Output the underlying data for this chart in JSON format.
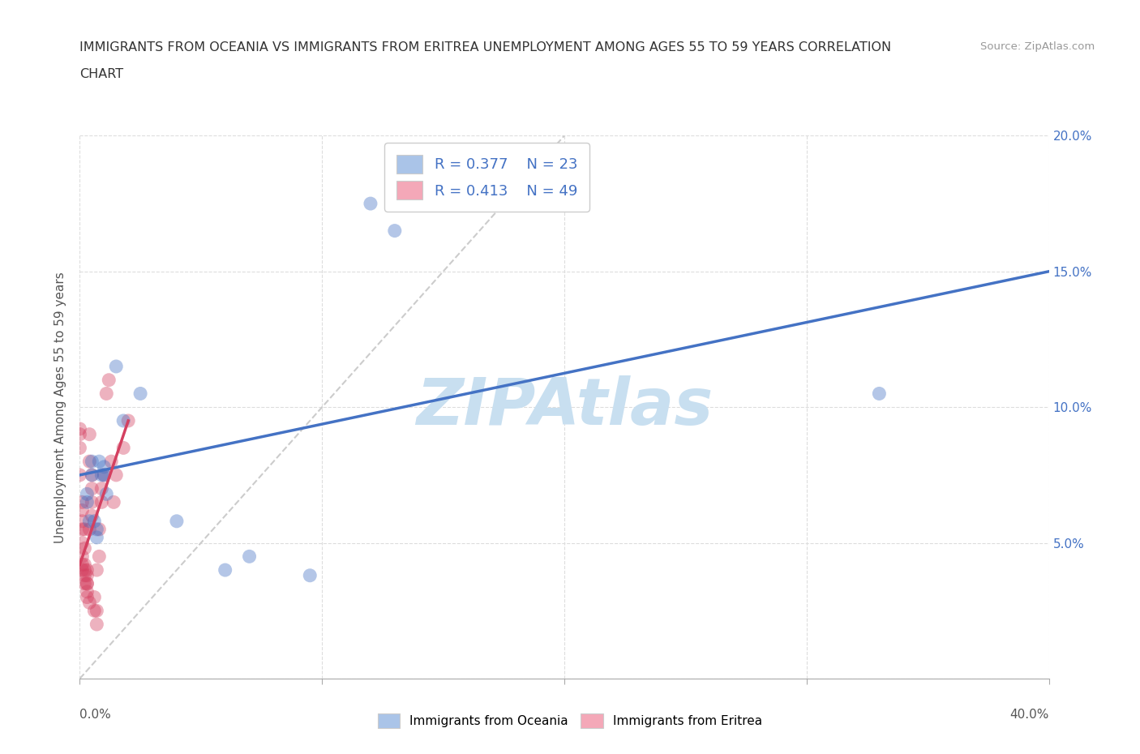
{
  "title_line1": "IMMIGRANTS FROM OCEANIA VS IMMIGRANTS FROM ERITREA UNEMPLOYMENT AMONG AGES 55 TO 59 YEARS CORRELATION",
  "title_line2": "CHART",
  "source": "Source: ZipAtlas.com",
  "ylabel": "Unemployment Among Ages 55 to 59 years",
  "legend_entries": [
    {
      "label": "Immigrants from Oceania",
      "color": "#aac4e8",
      "R": "0.377",
      "N": "23"
    },
    {
      "label": "Immigrants from Eritrea",
      "color": "#f4a8b8",
      "R": "0.413",
      "N": "49"
    }
  ],
  "xlim": [
    0.0,
    0.4
  ],
  "ylim": [
    0.0,
    0.2
  ],
  "oceania_points": [
    [
      0.003,
      0.065
    ],
    [
      0.003,
      0.068
    ],
    [
      0.004,
      0.058
    ],
    [
      0.005,
      0.075
    ],
    [
      0.005,
      0.08
    ],
    [
      0.006,
      0.058
    ],
    [
      0.007,
      0.052
    ],
    [
      0.007,
      0.055
    ],
    [
      0.008,
      0.08
    ],
    [
      0.009,
      0.075
    ],
    [
      0.01,
      0.075
    ],
    [
      0.01,
      0.078
    ],
    [
      0.011,
      0.068
    ],
    [
      0.015,
      0.115
    ],
    [
      0.018,
      0.095
    ],
    [
      0.025,
      0.105
    ],
    [
      0.04,
      0.058
    ],
    [
      0.06,
      0.04
    ],
    [
      0.07,
      0.045
    ],
    [
      0.095,
      0.038
    ],
    [
      0.12,
      0.175
    ],
    [
      0.13,
      0.165
    ],
    [
      0.33,
      0.105
    ]
  ],
  "eritrea_points": [
    [
      0.0,
      0.075
    ],
    [
      0.0,
      0.085
    ],
    [
      0.0,
      0.09
    ],
    [
      0.0,
      0.092
    ],
    [
      0.001,
      0.04
    ],
    [
      0.001,
      0.042
    ],
    [
      0.001,
      0.045
    ],
    [
      0.001,
      0.05
    ],
    [
      0.001,
      0.055
    ],
    [
      0.001,
      0.058
    ],
    [
      0.001,
      0.062
    ],
    [
      0.001,
      0.065
    ],
    [
      0.002,
      0.035
    ],
    [
      0.002,
      0.038
    ],
    [
      0.002,
      0.04
    ],
    [
      0.002,
      0.042
    ],
    [
      0.002,
      0.048
    ],
    [
      0.002,
      0.055
    ],
    [
      0.003,
      0.032
    ],
    [
      0.003,
      0.035
    ],
    [
      0.003,
      0.038
    ],
    [
      0.003,
      0.03
    ],
    [
      0.003,
      0.035
    ],
    [
      0.003,
      0.04
    ],
    [
      0.004,
      0.028
    ],
    [
      0.004,
      0.055
    ],
    [
      0.004,
      0.08
    ],
    [
      0.004,
      0.09
    ],
    [
      0.005,
      0.06
    ],
    [
      0.005,
      0.065
    ],
    [
      0.005,
      0.07
    ],
    [
      0.005,
      0.075
    ],
    [
      0.006,
      0.025
    ],
    [
      0.006,
      0.03
    ],
    [
      0.007,
      0.02
    ],
    [
      0.007,
      0.025
    ],
    [
      0.007,
      0.04
    ],
    [
      0.008,
      0.045
    ],
    [
      0.008,
      0.055
    ],
    [
      0.009,
      0.07
    ],
    [
      0.009,
      0.065
    ],
    [
      0.01,
      0.075
    ],
    [
      0.011,
      0.105
    ],
    [
      0.012,
      0.11
    ],
    [
      0.013,
      0.08
    ],
    [
      0.014,
      0.065
    ],
    [
      0.015,
      0.075
    ],
    [
      0.018,
      0.085
    ],
    [
      0.02,
      0.095
    ]
  ],
  "oceania_line_color": "#4472c4",
  "eritrea_line_color": "#d44060",
  "diagonal_line_color": "#cccccc",
  "background_color": "#ffffff",
  "grid_color": "#dddddd",
  "watermark": "ZIPAtlas",
  "watermark_color": "#c8dff0",
  "oceania_line": {
    "x0": 0.0,
    "y0": 0.075,
    "x1": 0.4,
    "y1": 0.15
  },
  "eritrea_line": {
    "x0": 0.0,
    "y0": 0.042,
    "x1": 0.02,
    "y1": 0.095
  }
}
